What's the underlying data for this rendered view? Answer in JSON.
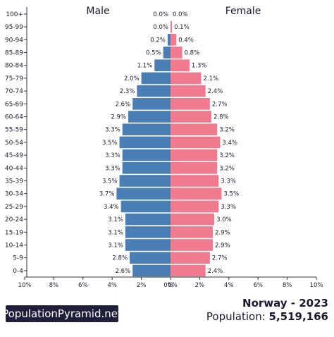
{
  "chart_data": {
    "type": "bar",
    "orientation": "horizontal-pyramid",
    "male_label": "Male",
    "female_label": "Female",
    "categories": [
      "0-4",
      "5-9",
      "10-14",
      "15-19",
      "20-24",
      "25-29",
      "30-34",
      "35-39",
      "40-44",
      "45-49",
      "50-54",
      "55-59",
      "60-64",
      "65-69",
      "70-74",
      "75-79",
      "80-84",
      "85-89",
      "90-94",
      "95-99",
      "100+"
    ],
    "series": [
      {
        "name": "Male",
        "color": "#4a7fb5",
        "values": [
          2.6,
          2.8,
          3.1,
          3.1,
          3.1,
          3.4,
          3.7,
          3.5,
          3.3,
          3.3,
          3.5,
          3.3,
          2.9,
          2.6,
          2.3,
          2.0,
          1.1,
          0.5,
          0.2,
          0.0,
          0.0
        ],
        "labels": [
          "2.6%",
          "2.8%",
          "3.1%",
          "3.1%",
          "3.1%",
          "3.4%",
          "3.7%",
          "3.5%",
          "3.3%",
          "3.3%",
          "3.5%",
          "3.3%",
          "2.9%",
          "2.6%",
          "2.3%",
          "2.0%",
          "1.1%",
          "0.5%",
          "0.2%",
          "0.0%",
          "0.0%"
        ]
      },
      {
        "name": "Female",
        "color": "#f07b8e",
        "values": [
          2.4,
          2.7,
          2.9,
          2.9,
          3.0,
          3.3,
          3.5,
          3.3,
          3.2,
          3.2,
          3.4,
          3.2,
          2.8,
          2.7,
          2.4,
          2.1,
          1.3,
          0.8,
          0.4,
          0.1,
          0.0
        ],
        "labels": [
          "2.4%",
          "2.7%",
          "2.9%",
          "2.9%",
          "3.0%",
          "3.3%",
          "3.5%",
          "3.3%",
          "3.2%",
          "3.2%",
          "3.4%",
          "3.2%",
          "2.8%",
          "2.7%",
          "2.4%",
          "2.1%",
          "1.3%",
          "0.8%",
          "0.4%",
          "0.1%",
          "0.0%"
        ]
      }
    ],
    "xlim": [
      0,
      10
    ],
    "xticks_left": [
      "10%",
      "8%",
      "6%",
      "4%",
      "2%",
      "0%"
    ],
    "xticks_right": [
      "0%",
      "2%",
      "4%",
      "6%",
      "8%",
      "10%"
    ],
    "grid": false
  },
  "footer": {
    "brand": "PopulationPyramid.net",
    "title": "Norway - 2023",
    "population_label": "Population: ",
    "population_value": "5,519,166"
  }
}
